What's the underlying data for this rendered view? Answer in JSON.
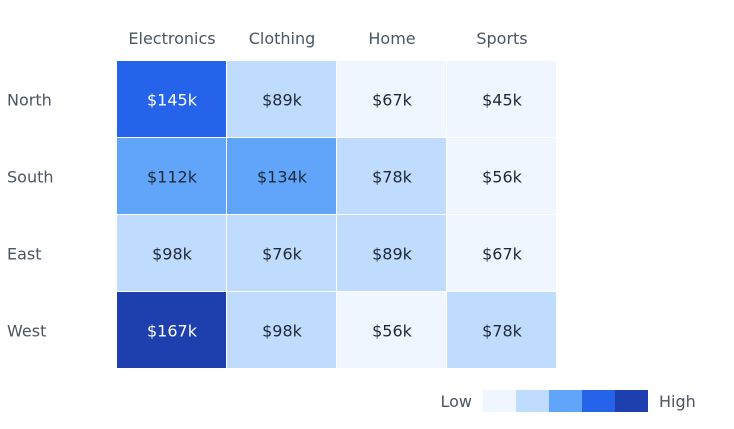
{
  "chart_data": {
    "type": "heatmap",
    "title": "",
    "xlabel": "",
    "ylabel": "",
    "columns": [
      "Electronics",
      "Clothing",
      "Home",
      "Sports"
    ],
    "rows": [
      "North",
      "South",
      "East",
      "West"
    ],
    "values": [
      [
        145,
        89,
        67,
        45
      ],
      [
        112,
        134,
        78,
        56
      ],
      [
        98,
        76,
        89,
        67
      ],
      [
        167,
        98,
        56,
        78
      ]
    ],
    "labels": [
      [
        "$145k",
        "$89k",
        "$67k",
        "$45k"
      ],
      [
        "$112k",
        "$134k",
        "$78k",
        "$56k"
      ],
      [
        "$98k",
        "$76k",
        "$89k",
        "$67k"
      ],
      [
        "$167k",
        "$98k",
        "$56k",
        "$78k"
      ]
    ],
    "legend": {
      "low_label": "Low",
      "high_label": "High",
      "colors": [
        "#eff6ff",
        "#bfdbfe",
        "#60a5fa",
        "#2563eb",
        "#1e40af"
      ]
    },
    "text_colors": {
      "dark": "#1f2937",
      "light": "#ffffff"
    }
  }
}
